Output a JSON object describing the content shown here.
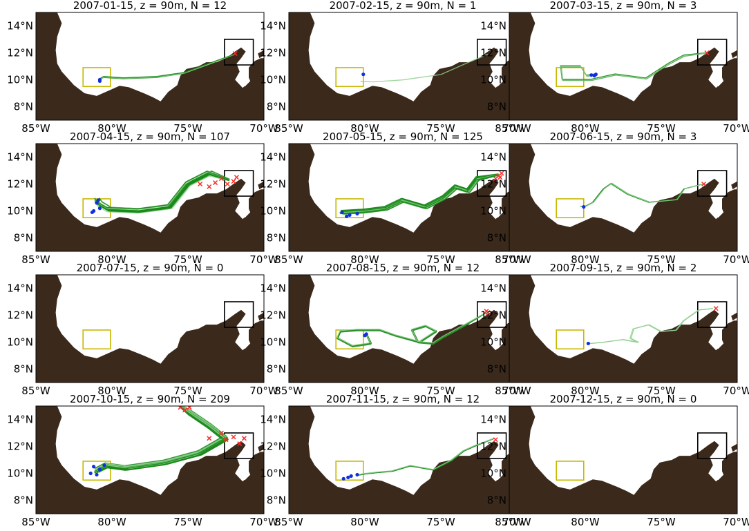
{
  "figure": {
    "colors": {
      "land": "#3b2a1c",
      "sea": "#ffffff",
      "track": "#1a8a1a",
      "track_light": "#8fcf8f",
      "start_marker": "#ff2a2a",
      "end_marker": "#1030e0",
      "source_box": "#000000",
      "target_box": "#c8b800"
    },
    "axes": {
      "x_ticks": [
        "85°W",
        "80°W",
        "75°W",
        "70°W"
      ],
      "y_ticks": [
        "14°N",
        "12°N",
        "10°N",
        "8°N"
      ],
      "lon_range": [
        -85,
        -70
      ],
      "lat_range": [
        7,
        15
      ]
    },
    "regions": {
      "source_box": {
        "lon": [
          -72.6,
          -70.7
        ],
        "lat": [
          11.1,
          13.0
        ]
      },
      "target_box": {
        "lon": [
          -81.9,
          -80.1
        ],
        "lat": [
          9.5,
          10.9
        ]
      }
    },
    "panels": [
      {
        "title": "2007-01-15, z = 90m, N = 12",
        "date": "2007-01-15",
        "depth": "90m",
        "N": 12
      },
      {
        "title": "2007-02-15, z = 90m, N = 1",
        "date": "2007-02-15",
        "depth": "90m",
        "N": 1
      },
      {
        "title": "2007-03-15, z = 90m, N = 3",
        "date": "2007-03-15",
        "depth": "90m",
        "N": 3
      },
      {
        "title": "2007-04-15, z = 90m, N = 107",
        "date": "2007-04-15",
        "depth": "90m",
        "N": 107
      },
      {
        "title": "2007-05-15, z = 90m, N = 125",
        "date": "2007-05-15",
        "depth": "90m",
        "N": 125
      },
      {
        "title": "2007-06-15, z = 90m, N = 3",
        "date": "2007-06-15",
        "depth": "90m",
        "N": 3
      },
      {
        "title": "2007-07-15, z = 90m, N = 0",
        "date": "2007-07-15",
        "depth": "90m",
        "N": 0
      },
      {
        "title": "2007-08-15, z = 90m, N = 12",
        "date": "2007-08-15",
        "depth": "90m",
        "N": 12
      },
      {
        "title": "2007-09-15, z = 90m, N = 2",
        "date": "2007-09-15",
        "depth": "90m",
        "N": 2
      },
      {
        "title": "2007-10-15, z = 90m, N = 209",
        "date": "2007-10-15",
        "depth": "90m",
        "N": 209
      },
      {
        "title": "2007-11-15, z = 90m, N = 12",
        "date": "2007-11-15",
        "depth": "90m",
        "N": 12
      },
      {
        "title": "2007-12-15, z = 90m, N = 0",
        "date": "2007-12-15",
        "depth": "90m",
        "N": 0
      }
    ]
  }
}
